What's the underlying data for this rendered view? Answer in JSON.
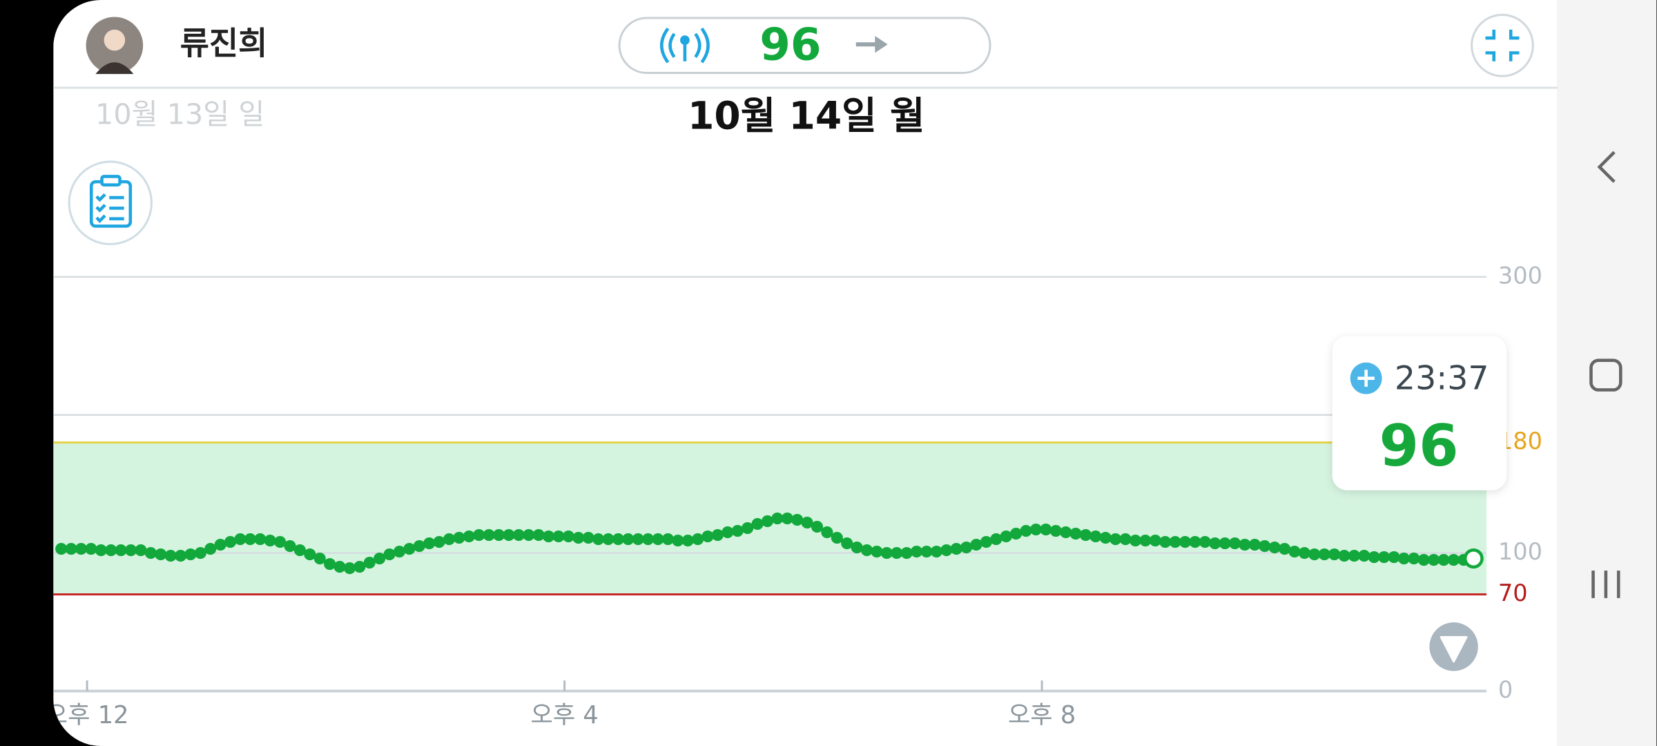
{
  "header": {
    "name": "류진희",
    "current_value": "96"
  },
  "dates": {
    "previous": "10월 13일 일",
    "current": "10월 14일 월"
  },
  "chart_data": {
    "type": "line",
    "color": "#12a83b",
    "x": [
      707,
      712,
      717,
      722,
      727,
      732,
      737,
      742,
      747,
      752,
      757,
      762,
      767,
      772,
      777,
      782,
      787,
      792,
      797,
      802,
      807,
      812,
      817,
      822,
      827,
      832,
      837,
      842,
      847,
      852,
      857,
      862,
      867,
      872,
      877,
      882,
      887,
      892,
      897,
      902,
      907,
      912,
      917,
      922,
      927,
      932,
      937,
      942,
      947,
      952,
      957,
      962,
      967,
      972,
      977,
      982,
      987,
      992,
      997,
      1002,
      1007,
      1012,
      1017,
      1022,
      1027,
      1032,
      1037,
      1042,
      1047,
      1052,
      1057,
      1062,
      1067,
      1072,
      1077,
      1082,
      1087,
      1092,
      1097,
      1102,
      1107,
      1112,
      1117,
      1122,
      1127,
      1132,
      1137,
      1142,
      1147,
      1152,
      1157,
      1162,
      1167,
      1172,
      1177,
      1182,
      1187,
      1192,
      1197,
      1202,
      1207,
      1212,
      1217,
      1222,
      1227,
      1232,
      1237,
      1242,
      1247,
      1252,
      1257,
      1262,
      1267,
      1272,
      1277,
      1282,
      1287,
      1292,
      1297,
      1302,
      1307,
      1312,
      1317,
      1322,
      1327,
      1332,
      1337,
      1342,
      1347,
      1352,
      1357,
      1362,
      1367,
      1372,
      1377,
      1382,
      1387,
      1392,
      1397,
      1402,
      1407,
      1412,
      1417
    ],
    "values": [
      103,
      103,
      103,
      103,
      102,
      102,
      102,
      102,
      102,
      100,
      99,
      98,
      98,
      99,
      100,
      103,
      106,
      108,
      110,
      110,
      110,
      109,
      108,
      105,
      102,
      99,
      96,
      92,
      90,
      89,
      90,
      93,
      96,
      99,
      101,
      103,
      105,
      107,
      108,
      110,
      111,
      112,
      113,
      113,
      113,
      113,
      113,
      113,
      113,
      112,
      112,
      112,
      111,
      111,
      110,
      110,
      110,
      110,
      110,
      110,
      110,
      110,
      109,
      109,
      110,
      112,
      113,
      115,
      116,
      118,
      121,
      123,
      125,
      125,
      124,
      122,
      119,
      115,
      111,
      107,
      104,
      102,
      101,
      100,
      100,
      100,
      101,
      101,
      101,
      102,
      103,
      104,
      106,
      108,
      110,
      112,
      114,
      116,
      117,
      117,
      116,
      115,
      114,
      113,
      112,
      111,
      110,
      110,
      109,
      109,
      109,
      108,
      108,
      108,
      108,
      108,
      107,
      107,
      107,
      106,
      106,
      105,
      104,
      103,
      101,
      100,
      99,
      99,
      99,
      98,
      98,
      98,
      97,
      97,
      97,
      96,
      96,
      95,
      95,
      95,
      95,
      95,
      96
    ],
    "xlim": [
      703,
      1423.5
    ],
    "xticks": [
      {
        "value": 720,
        "label": "오후 12"
      },
      {
        "value": 960,
        "label": "오후 4"
      },
      {
        "value": 1200,
        "label": "오후 8"
      }
    ],
    "ylim": [
      0,
      300
    ],
    "yticks": [
      0,
      70,
      100,
      180,
      300
    ],
    "ytick_colors": [
      "#b4bcc3",
      "#b71c1c",
      "#b4bcc3",
      "#e6a41e",
      "#b4bcc3"
    ],
    "ygrid": [
      100,
      200,
      300
    ],
    "target_range": {
      "low": 70,
      "high": 180,
      "fill": "#d5f4e0",
      "low_color": "#c62828",
      "high_color": "#e3d24a"
    },
    "tooltip": {
      "time": "23:37",
      "value": "96"
    }
  }
}
